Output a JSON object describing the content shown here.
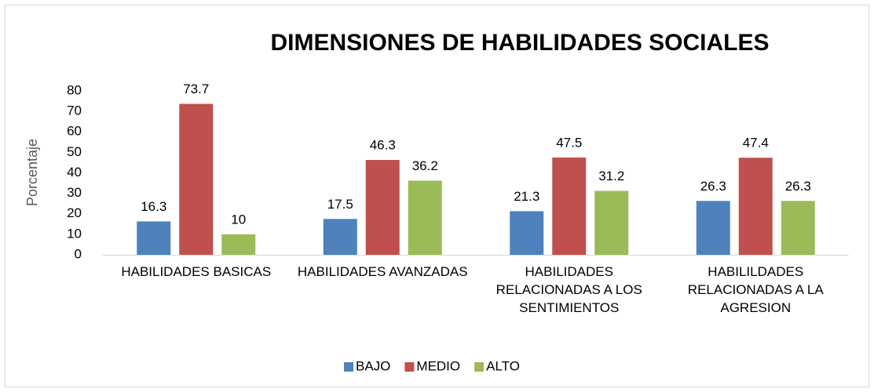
{
  "chart_data": {
    "type": "bar",
    "title": "DIMENSIONES DE HABILIDADES SOCIALES",
    "ylabel": "Porcentaje",
    "categories": [
      "HABILIDADES BASICAS",
      "HABILIDADES AVANZADAS",
      "HABILIDADES RELACIONADAS A LOS SENTIMIENTOS",
      "HABILILDADES RELACIONADAS A LA AGRESION"
    ],
    "series": [
      {
        "name": "BAJO",
        "color": "#4f81bd",
        "values": [
          16.3,
          17.5,
          21.3,
          26.3
        ]
      },
      {
        "name": "MEDIO",
        "color": "#c0504d",
        "values": [
          73.7,
          46.3,
          47.5,
          47.4
        ]
      },
      {
        "name": "ALTO",
        "color": "#9bbb59",
        "values": [
          10,
          36.2,
          31.2,
          26.3
        ]
      }
    ],
    "ylim": [
      0,
      80
    ],
    "yticks": [
      0,
      10,
      20,
      30,
      40,
      50,
      60,
      70,
      80
    ],
    "grid": false,
    "legend": "bottom"
  }
}
